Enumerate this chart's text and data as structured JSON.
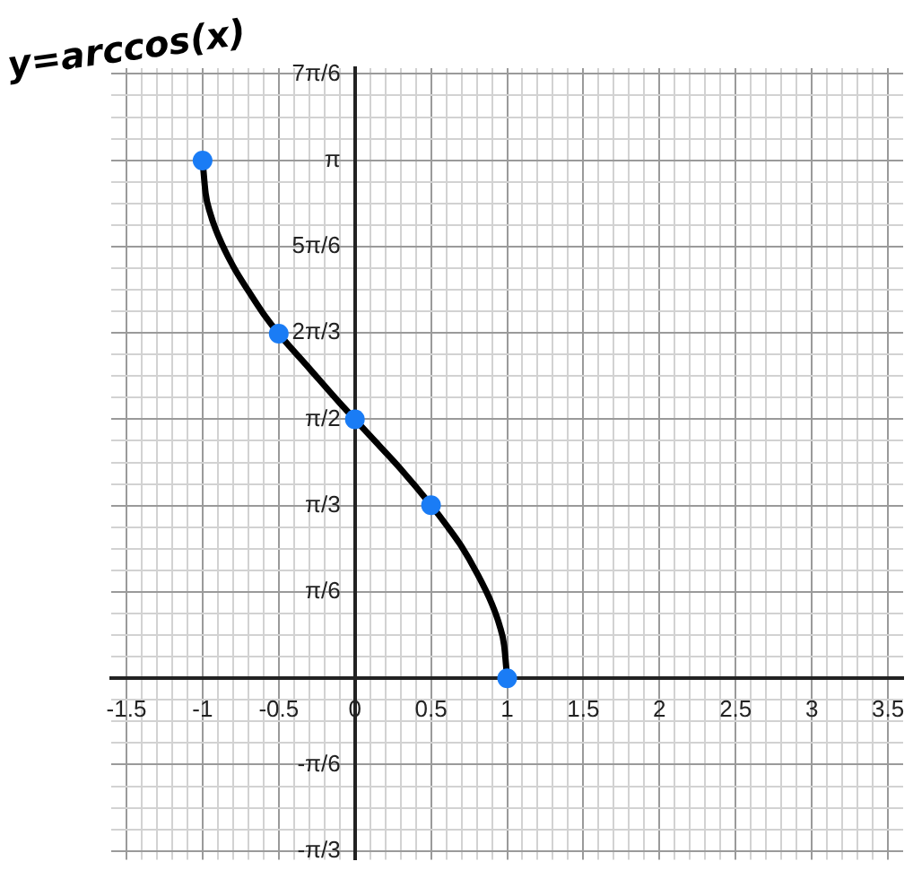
{
  "chart_data": {
    "type": "line",
    "title": "y=arccos(x)",
    "xlim": [
      -1.6,
      3.6
    ],
    "ylim": [
      -1.1,
      3.7
    ],
    "xticks": [
      -1.5,
      {
        "value": -1.4,
        "label": null
      },
      {
        "value": -1.3,
        "label": null
      },
      {
        "value": -1.2,
        "label": null
      },
      {
        "value": -1.1,
        "label": null
      },
      -1,
      {
        "value": -0.9,
        "label": null
      },
      {
        "value": -0.8,
        "label": null
      },
      {
        "value": -0.7,
        "label": null
      },
      {
        "value": -0.6,
        "label": null
      },
      -0.5,
      {
        "value": -0.4,
        "label": null
      },
      {
        "value": -0.3,
        "label": null
      },
      {
        "value": -0.2,
        "label": null
      },
      {
        "value": -0.1,
        "label": null
      },
      0,
      {
        "value": 0.1,
        "label": null
      },
      {
        "value": 0.2,
        "label": null
      },
      {
        "value": 0.3,
        "label": null
      },
      {
        "value": 0.4,
        "label": null
      },
      0.5,
      {
        "value": 0.6,
        "label": null
      },
      {
        "value": 0.7,
        "label": null
      },
      {
        "value": 0.8,
        "label": null
      },
      {
        "value": 0.9,
        "label": null
      },
      1,
      {
        "value": 1.1,
        "label": null
      },
      {
        "value": 1.2,
        "label": null
      },
      {
        "value": 1.3,
        "label": null
      },
      {
        "value": 1.4,
        "label": null
      },
      1.5,
      {
        "value": 1.6,
        "label": null
      },
      {
        "value": 1.7,
        "label": null
      },
      {
        "value": 1.8,
        "label": null
      },
      {
        "value": 1.9,
        "label": null
      },
      2,
      {
        "value": 2.1,
        "label": null
      },
      {
        "value": 2.2,
        "label": null
      },
      {
        "value": 2.3,
        "label": null
      },
      {
        "value": 2.4,
        "label": null
      },
      2.5,
      {
        "value": 2.6,
        "label": null
      },
      {
        "value": 2.7,
        "label": null
      },
      {
        "value": 2.8,
        "label": null
      },
      {
        "value": 2.9,
        "label": null
      },
      3,
      {
        "value": 3.1,
        "label": null
      },
      {
        "value": 3.2,
        "label": null
      },
      {
        "value": 3.3,
        "label": null
      },
      {
        "value": 3.4,
        "label": null
      },
      3.5
    ],
    "yticks": [
      {
        "value": -1.0472,
        "label": "-π/3"
      },
      {
        "value": -0.9163,
        "label": null
      },
      {
        "value": -0.7854,
        "label": null
      },
      {
        "value": -0.6545,
        "label": null
      },
      {
        "value": -0.5236,
        "label": "-π/6"
      },
      {
        "value": -0.3927,
        "label": null
      },
      {
        "value": -0.2618,
        "label": null
      },
      {
        "value": -0.1309,
        "label": null
      },
      {
        "value": 0,
        "label": null
      },
      {
        "value": 0.1309,
        "label": null
      },
      {
        "value": 0.2618,
        "label": null
      },
      {
        "value": 0.3927,
        "label": null
      },
      {
        "value": 0.5236,
        "label": "π/6"
      },
      {
        "value": 0.6545,
        "label": null
      },
      {
        "value": 0.7854,
        "label": null
      },
      {
        "value": 0.9163,
        "label": null
      },
      {
        "value": 1.0472,
        "label": "π/3"
      },
      {
        "value": 1.1781,
        "label": null
      },
      {
        "value": 1.309,
        "label": null
      },
      {
        "value": 1.4399,
        "label": null
      },
      {
        "value": 1.5708,
        "label": "π/2"
      },
      {
        "value": 1.7017,
        "label": null
      },
      {
        "value": 1.8326,
        "label": null
      },
      {
        "value": 1.9635,
        "label": null
      },
      {
        "value": 2.0944,
        "label": "2π/3"
      },
      {
        "value": 2.2253,
        "label": null
      },
      {
        "value": 2.3562,
        "label": null
      },
      {
        "value": 2.4871,
        "label": null
      },
      {
        "value": 2.618,
        "label": "5π/6"
      },
      {
        "value": 2.7489,
        "label": null
      },
      {
        "value": 2.8798,
        "label": null
      },
      {
        "value": 3.0107,
        "label": null
      },
      {
        "value": 3.1416,
        "label": "π"
      },
      {
        "value": 3.2725,
        "label": null
      },
      {
        "value": 3.4034,
        "label": null
      },
      {
        "value": 3.5343,
        "label": null
      },
      {
        "value": 3.6652,
        "label": "7π/6"
      }
    ],
    "grid": true,
    "legend": false,
    "series": [
      {
        "color": "#000000",
        "marker": "none",
        "line_style": "solid",
        "x": [
          -1,
          -0.98,
          -0.95,
          -0.9,
          -0.8,
          -0.7,
          -0.6,
          -0.5,
          -0.3,
          -0.1,
          0,
          0.1,
          0.3,
          0.5,
          0.6,
          0.7,
          0.8,
          0.9,
          0.95,
          0.98,
          1
        ],
        "values": [
          3.14,
          2.94,
          2.82,
          2.69,
          2.5,
          2.35,
          2.21,
          2.09,
          1.88,
          1.67,
          1.57,
          1.47,
          1.27,
          1.05,
          0.93,
          0.8,
          0.64,
          0.45,
          0.32,
          0.2,
          0
        ]
      },
      {
        "type": "scatter",
        "color": "#1a7cf5",
        "marker": "circle",
        "x": [
          -1,
          -0.5,
          0,
          0.5,
          1
        ],
        "values": [
          3.14,
          2.09,
          1.57,
          1.05,
          0
        ]
      }
    ]
  }
}
